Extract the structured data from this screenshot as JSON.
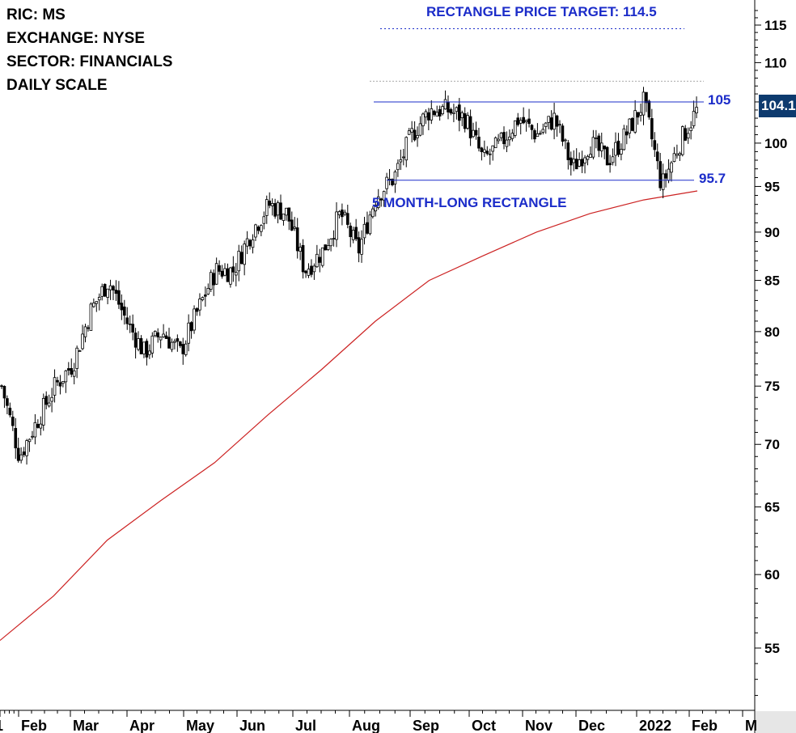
{
  "info": {
    "ric": "RIC: MS",
    "exchange": "EXCHANGE: NYSE",
    "sector": "SECTOR: FINANCIALS",
    "scale": "DAILY SCALE"
  },
  "annotations": {
    "target": "RECTANGLE PRICE TARGET: 114.5",
    "pattern": "5 MONTH-LONG RECTANGLE",
    "upper_label": "105",
    "lower_label": "95.7",
    "last_price": "104.1"
  },
  "colors": {
    "candle": "#000000",
    "moving_average": "#cc2222",
    "annotation_blue": "#1b2cc9",
    "price_tag": "#0d3a6e"
  },
  "chart_data": {
    "type": "candlestick",
    "y_scale": "log",
    "ylim": [
      51,
      118
    ],
    "y_ticks": [
      55,
      60,
      65,
      70,
      75,
      80,
      85,
      90,
      95,
      100,
      105,
      110,
      115
    ],
    "x_ticks": [
      "1",
      "Feb",
      "Mar",
      "Apr",
      "May",
      "Jun",
      "Jul",
      "Aug",
      "Sep",
      "Oct",
      "Nov",
      "Dec",
      "2022",
      "Feb",
      "M"
    ],
    "levels": {
      "resistance": 105,
      "support": 95.7,
      "target": 114.5,
      "prior_high": 107.6
    },
    "price_path": [
      [
        "Jan",
        75
      ],
      [
        "Jan",
        69
      ],
      [
        "Feb",
        72
      ],
      [
        "Feb",
        75
      ],
      [
        "Feb",
        77
      ],
      [
        "Mar",
        82
      ],
      [
        "Mar",
        85
      ],
      [
        "Mar",
        81
      ],
      [
        "Apr",
        78
      ],
      [
        "Apr",
        80
      ],
      [
        "Apr",
        78
      ],
      [
        "May",
        82
      ],
      [
        "May",
        86
      ],
      [
        "May",
        86
      ],
      [
        "Jun",
        90
      ],
      [
        "Jun",
        93
      ],
      [
        "Jun",
        92
      ],
      [
        "Jun",
        86
      ],
      [
        "Jul",
        88
      ],
      [
        "Jul",
        92
      ],
      [
        "Jul",
        88
      ],
      [
        "Jul",
        94
      ],
      [
        "Aug",
        96
      ],
      [
        "Aug",
        101
      ],
      [
        "Aug",
        104
      ],
      [
        "Sep",
        104
      ],
      [
        "Sep",
        103
      ],
      [
        "Sep",
        98
      ],
      [
        "Oct",
        100
      ],
      [
        "Oct",
        103
      ],
      [
        "Oct",
        101
      ],
      [
        "Nov",
        103
      ],
      [
        "Nov",
        97
      ],
      [
        "Dec",
        100
      ],
      [
        "Dec",
        98
      ],
      [
        "Dec",
        101
      ],
      [
        "2022",
        105
      ],
      [
        "2022",
        95
      ],
      [
        "Feb",
        100
      ],
      [
        "Feb",
        104.1
      ]
    ],
    "moving_average": [
      [
        "Jan",
        55.5
      ],
      [
        "Feb",
        58.5
      ],
      [
        "Mar",
        62.5
      ],
      [
        "Apr",
        65.5
      ],
      [
        "May",
        68.5
      ],
      [
        "Jun",
        72.5
      ],
      [
        "Jul",
        76.5
      ],
      [
        "Aug",
        81
      ],
      [
        "Sep",
        85
      ],
      [
        "Oct",
        87.5
      ],
      [
        "Nov",
        90
      ],
      [
        "Dec",
        92
      ],
      [
        "2022",
        93.5
      ],
      [
        "Feb",
        94.5
      ]
    ],
    "grid": false,
    "legend": "none"
  }
}
